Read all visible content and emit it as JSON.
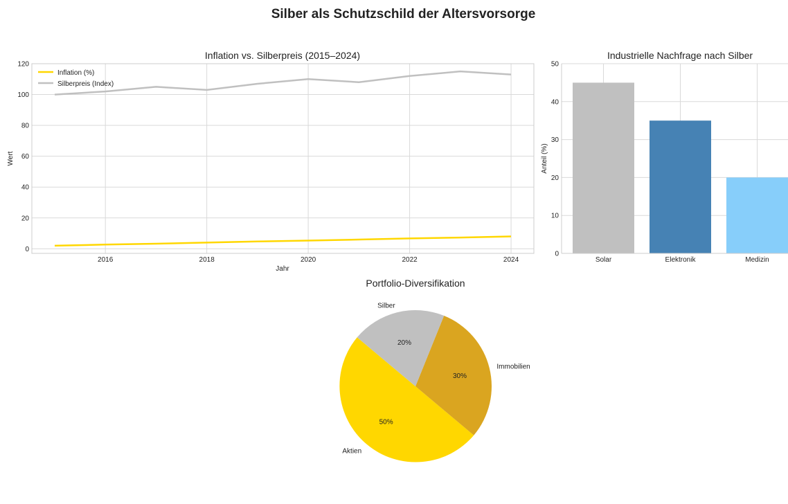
{
  "title": "Silber als Schutzschild der Altersvorsorge",
  "colors": {
    "inflation": "#FFD700",
    "silver": "#C0C0C0",
    "grid": "#d9d9d9",
    "axis": "#cccccc"
  },
  "chart_data": [
    {
      "type": "line",
      "title": "Inflation vs. Silberpreis (2015–2024)",
      "xlabel": "Jahr",
      "ylabel": "Wert",
      "x": [
        2015,
        2016,
        2017,
        2018,
        2019,
        2020,
        2021,
        2022,
        2023,
        2024
      ],
      "xlim": [
        2014.55,
        2024.45
      ],
      "ylim": [
        -3,
        120
      ],
      "xticks": [
        2016,
        2018,
        2020,
        2022,
        2024
      ],
      "yticks": [
        0,
        20,
        40,
        60,
        80,
        100,
        120
      ],
      "grid": true,
      "legend": "top-left",
      "series": [
        {
          "name": "Inflation (%)",
          "color": "#FFD700",
          "values": [
            2.0,
            2.7,
            3.3,
            4.0,
            4.7,
            5.3,
            6.0,
            6.7,
            7.3,
            8.0
          ]
        },
        {
          "name": "Silberpreis (Index)",
          "color": "#C0C0C0",
          "values": [
            100,
            102,
            105,
            103,
            107,
            110,
            108,
            112,
            115,
            113
          ]
        }
      ]
    },
    {
      "type": "bar",
      "title": "Industrielle Nachfrage nach Silber",
      "xlabel": "",
      "ylabel": "Anteil (%)",
      "categories": [
        "Solar",
        "Elektronik",
        "Medizin"
      ],
      "values": [
        45,
        35,
        20
      ],
      "colors": [
        "#C0C0C0",
        "#4682B4",
        "#87CEFA"
      ],
      "ylim": [
        0,
        50
      ],
      "yticks": [
        0,
        10,
        20,
        30,
        40,
        50
      ],
      "grid": true
    },
    {
      "type": "pie",
      "title": "Portfolio-Diversifikation",
      "labels": [
        "Aktien",
        "Immobilien",
        "Silber"
      ],
      "values": [
        50,
        30,
        20
      ],
      "percent_labels": [
        "50%",
        "30%",
        "20%"
      ],
      "colors": [
        "#FFD700",
        "#DAA520",
        "#C0C0C0"
      ],
      "start_angle": 140
    }
  ]
}
